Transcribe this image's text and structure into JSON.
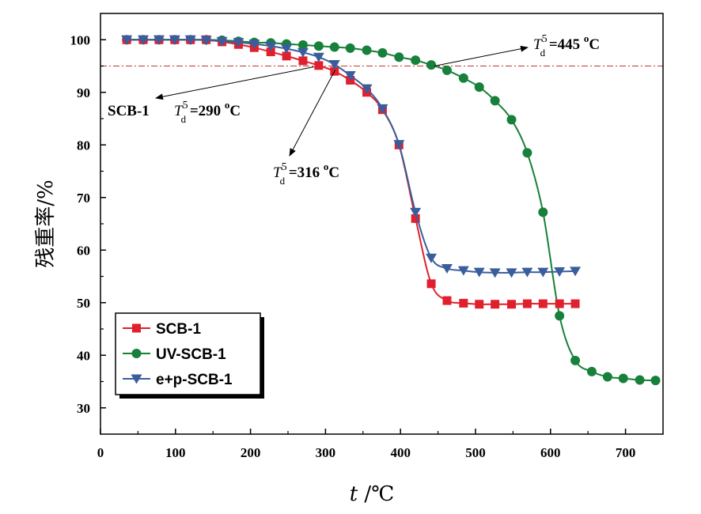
{
  "chart_data": {
    "type": "line",
    "xlabel_var": "t",
    "xlabel_unit": "/℃",
    "ylabel": "残重率/%",
    "xlim": [
      0,
      750
    ],
    "ylim": [
      25,
      105
    ],
    "xticks": [
      "0",
      "100",
      "200",
      "300",
      "400",
      "500",
      "600",
      "700"
    ],
    "yticks": [
      "30",
      "40",
      "50",
      "60",
      "70",
      "80",
      "90",
      "100"
    ],
    "grid": false,
    "legend_position": "bottom-left",
    "reference_line": {
      "y": 95,
      "color": "#c0392b",
      "style": "dash-dot"
    },
    "series": [
      {
        "name": "SCB-1",
        "color": "#e0202e",
        "marker": "square",
        "x": [
          35,
          57,
          78,
          99,
          120,
          141,
          162,
          184,
          205,
          227,
          248,
          270,
          291,
          312,
          333,
          355,
          376,
          398,
          420,
          441,
          462,
          484,
          505,
          526,
          548,
          569,
          590,
          612,
          633
        ],
        "y": [
          100,
          100,
          100,
          100,
          100,
          100,
          99.6,
          99.1,
          98.5,
          97.7,
          96.9,
          96,
          95.1,
          94,
          92.3,
          90,
          86.7,
          80,
          66,
          53.6,
          50.4,
          49.9,
          49.7,
          49.7,
          49.7,
          49.8,
          49.8,
          49.8,
          49.8
        ]
      },
      {
        "name": "UV-SCB-1",
        "color": "#17803a",
        "marker": "circle",
        "x": [
          35,
          57,
          78,
          99,
          120,
          141,
          162,
          184,
          205,
          227,
          248,
          270,
          291,
          312,
          333,
          355,
          376,
          398,
          420,
          441,
          462,
          484,
          505,
          526,
          548,
          569,
          590,
          612,
          633,
          655,
          676,
          697,
          719,
          740
        ],
        "y": [
          100,
          100,
          100,
          100,
          100,
          100,
          99.9,
          99.7,
          99.5,
          99.4,
          99.2,
          99.0,
          98.8,
          98.6,
          98.4,
          98.0,
          97.5,
          96.7,
          96.1,
          95.2,
          94.2,
          92.7,
          91.0,
          88.4,
          84.8,
          78.5,
          67.2,
          47.5,
          39.0,
          36.9,
          35.9,
          35.6,
          35.3,
          35.2
        ]
      },
      {
        "name": "e+p-SCB-1",
        "color": "#3a5e9c",
        "marker": "triangle-down",
        "x": [
          35,
          57,
          78,
          99,
          120,
          141,
          162,
          184,
          205,
          227,
          248,
          270,
          291,
          312,
          333,
          355,
          376,
          398,
          420,
          441,
          462,
          484,
          505,
          526,
          548,
          569,
          590,
          612,
          633
        ],
        "y": [
          100,
          100,
          100,
          100,
          100,
          99.9,
          99.7,
          99.5,
          99.2,
          98.8,
          98.3,
          97.6,
          96.7,
          95.3,
          93.2,
          90.7,
          86.9,
          80.1,
          67.2,
          58.5,
          56.5,
          56.1,
          55.8,
          55.7,
          55.7,
          55.8,
          55.8,
          55.9,
          56.0
        ]
      }
    ],
    "annotations": [
      {
        "id": "a445",
        "pre": "T",
        "sub": "d",
        "sup": "5",
        "text": " =445 ",
        "sup2": "o",
        "unit": "C",
        "x_data": 445,
        "y_data": 95
      },
      {
        "id": "a290",
        "label": "SCB-1",
        "pre": "T",
        "sub": "d",
        "sup": "5",
        "text": " =290 ",
        "sup2": "o",
        "unit": "C",
        "x_data": 290,
        "y_data": 95
      },
      {
        "id": "a316",
        "pre": "T",
        "sub": "d",
        "sup": "5",
        "text": " =316 ",
        "sup2": "o",
        "unit": "C",
        "x_data": 316,
        "y_data": 95
      }
    ]
  }
}
